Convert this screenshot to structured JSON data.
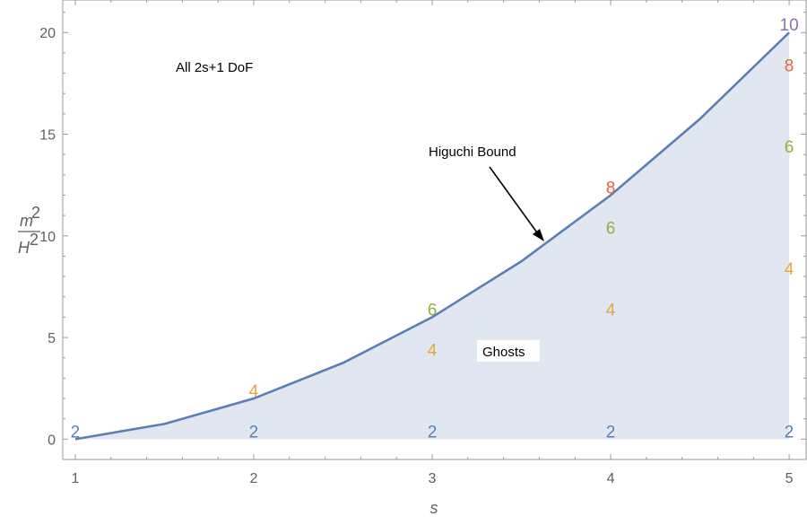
{
  "chart_data": {
    "type": "area",
    "title": "",
    "xlabel": "s",
    "ylabel": {
      "numerator": "m",
      "denominator": "H",
      "exponent": "2"
    },
    "xlim": [
      0.93,
      5.1
    ],
    "ylim": [
      -1.0,
      21.6
    ],
    "grid": false,
    "x_ticks": [
      1,
      2,
      3,
      4,
      5
    ],
    "y_ticks": [
      0,
      5,
      10,
      15,
      20
    ],
    "curve": {
      "name": "Higuchi Bound",
      "formula": "s(s-1)",
      "color": "#5b7fb5",
      "fill_color": "#e1e7f1",
      "x": [
        1.0,
        1.5,
        2.0,
        2.5,
        3.0,
        3.5,
        4.0,
        4.5,
        5.0
      ],
      "y": [
        0.0,
        0.75,
        2.0,
        3.75,
        6.0,
        8.75,
        12.0,
        15.75,
        20.0
      ]
    },
    "annotations": {
      "all_dof": "All 2s+1 DoF",
      "higuchi": "Higuchi Bound",
      "ghosts": "Ghosts"
    },
    "points": [
      {
        "s": 1,
        "y": 0.4,
        "label": "2",
        "color": "#5b7fb5"
      },
      {
        "s": 2,
        "y": 0.4,
        "label": "2",
        "color": "#5b7fb5"
      },
      {
        "s": 2,
        "y": 2.4,
        "label": "4",
        "color": "#e8a33d"
      },
      {
        "s": 3,
        "y": 0.4,
        "label": "2",
        "color": "#5b7fb5"
      },
      {
        "s": 3,
        "y": 4.4,
        "label": "4",
        "color": "#e8a33d"
      },
      {
        "s": 3,
        "y": 6.4,
        "label": "6",
        "color": "#8fb03e"
      },
      {
        "s": 4,
        "y": 0.4,
        "label": "2",
        "color": "#5b7fb5"
      },
      {
        "s": 4,
        "y": 6.4,
        "label": "4",
        "color": "#e8a33d"
      },
      {
        "s": 4,
        "y": 10.4,
        "label": "6",
        "color": "#8fb03e"
      },
      {
        "s": 4,
        "y": 12.4,
        "label": "8",
        "color": "#e5653a"
      },
      {
        "s": 5,
        "y": 0.4,
        "label": "2",
        "color": "#5b7fb5"
      },
      {
        "s": 5,
        "y": 8.4,
        "label": "4",
        "color": "#e8a33d"
      },
      {
        "s": 5,
        "y": 14.4,
        "label": "6",
        "color": "#8fb03e"
      },
      {
        "s": 5,
        "y": 18.4,
        "label": "8",
        "color": "#e5653a"
      },
      {
        "s": 5,
        "y": 20.4,
        "label": "10",
        "color": "#8e70b5"
      }
    ]
  }
}
